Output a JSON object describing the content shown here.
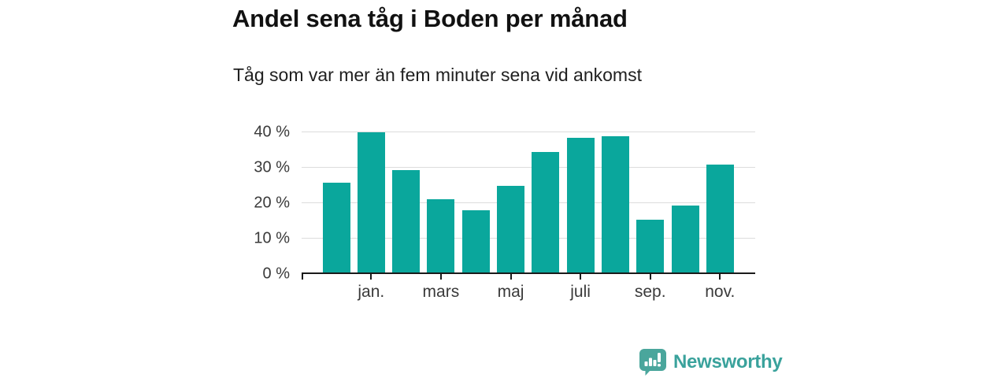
{
  "header": {
    "title": "Andel sena tåg i Boden per månad",
    "subtitle": "Tåg som var mer än fem minuter sena vid ankomst"
  },
  "chart_data": {
    "type": "bar",
    "title": "Andel sena tåg i Boden per månad",
    "subtitle": "Tåg som var mer än fem minuter sena vid ankomst",
    "unit": "%",
    "values": [
      25.8,
      40,
      29.3,
      21.1,
      17.9,
      24.8,
      34.4,
      38.4,
      38.8,
      15.4,
      19.3,
      31
    ],
    "x_tick_labels": [
      "jan.",
      "mars",
      "maj",
      "juli",
      "sep.",
      "nov."
    ],
    "x_tick_bar_indices": [
      1,
      3,
      5,
      7,
      9,
      11
    ],
    "y_ticks": [
      "0 %",
      "10 %",
      "20 %",
      "30 %",
      "40 %"
    ],
    "y_tick_values": [
      0,
      10,
      20,
      30,
      40
    ],
    "ylim": [
      0,
      42
    ],
    "grid": true,
    "legend": "none",
    "bar_color": "#0aa79c",
    "grid_color": "#dcdcdc",
    "axis_color": "#1a1a1a",
    "tick_label_color": "#3a3a3a"
  },
  "footer": {
    "brand_label": "Newsworthy",
    "brand_text_color": "#3aa29c",
    "brand_icon_color": "#4aa69c"
  }
}
